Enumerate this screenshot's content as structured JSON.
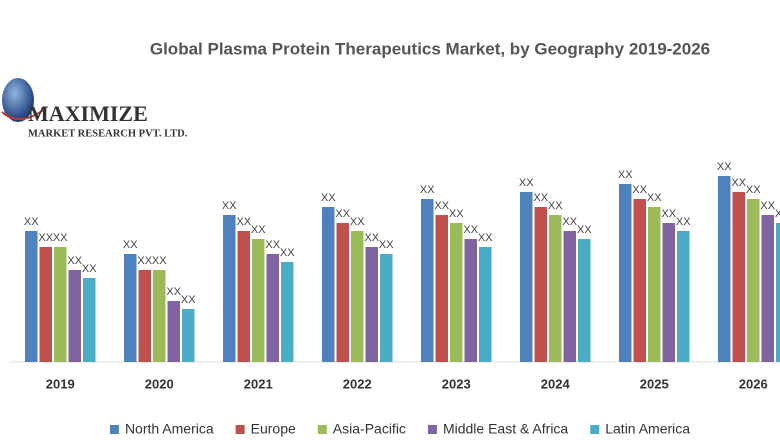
{
  "logo": {
    "name": "MAXIMIZE",
    "subtitle": "MARKET RESEARCH PVT. LTD."
  },
  "chart_data": {
    "type": "bar",
    "title": "Global Plasma Protein Therapeutics Market, by Geography 2019-2026",
    "categories": [
      "2019",
      "2020",
      "2021",
      "2022",
      "2023",
      "2024",
      "2025",
      "2026"
    ],
    "series": [
      {
        "name": "North America",
        "color": "#4f81bd",
        "values": [
          131,
          108,
          147,
          155,
          163,
          170,
          178,
          186
        ],
        "value_labels": [
          "XX",
          "XX",
          "XX",
          "XX",
          "XX",
          "XX",
          "XX",
          "XX"
        ]
      },
      {
        "name": "Europe",
        "color": "#c0504d",
        "values": [
          115,
          92,
          131,
          139,
          147,
          155,
          163,
          170
        ],
        "value_labels": [
          "XX",
          "XX",
          "XX",
          "XX",
          "XX",
          "XX",
          "XX",
          "XX"
        ]
      },
      {
        "name": "Asia-Pacific",
        "color": "#9bbb59",
        "values": [
          115,
          92,
          123,
          131,
          139,
          147,
          155,
          163
        ],
        "value_labels": [
          "XX",
          "XX",
          "XX",
          "XX",
          "XX",
          "XX",
          "XX",
          "XX"
        ]
      },
      {
        "name": "Middle East & Africa",
        "color": "#8064a2",
        "values": [
          92,
          61,
          108,
          115,
          123,
          131,
          139,
          147
        ],
        "value_labels": [
          "XX",
          "XX",
          "XX",
          "XX",
          "XX",
          "XX",
          "XX",
          "XX"
        ]
      },
      {
        "name": "Latin America",
        "color": "#4bacc6",
        "values": [
          84,
          53,
          100,
          108,
          115,
          123,
          131,
          139
        ],
        "value_labels": [
          "XX",
          "XX",
          "XX",
          "XX",
          "XX",
          "XX",
          "XX",
          "XX"
        ]
      }
    ],
    "legend": "bottom"
  }
}
